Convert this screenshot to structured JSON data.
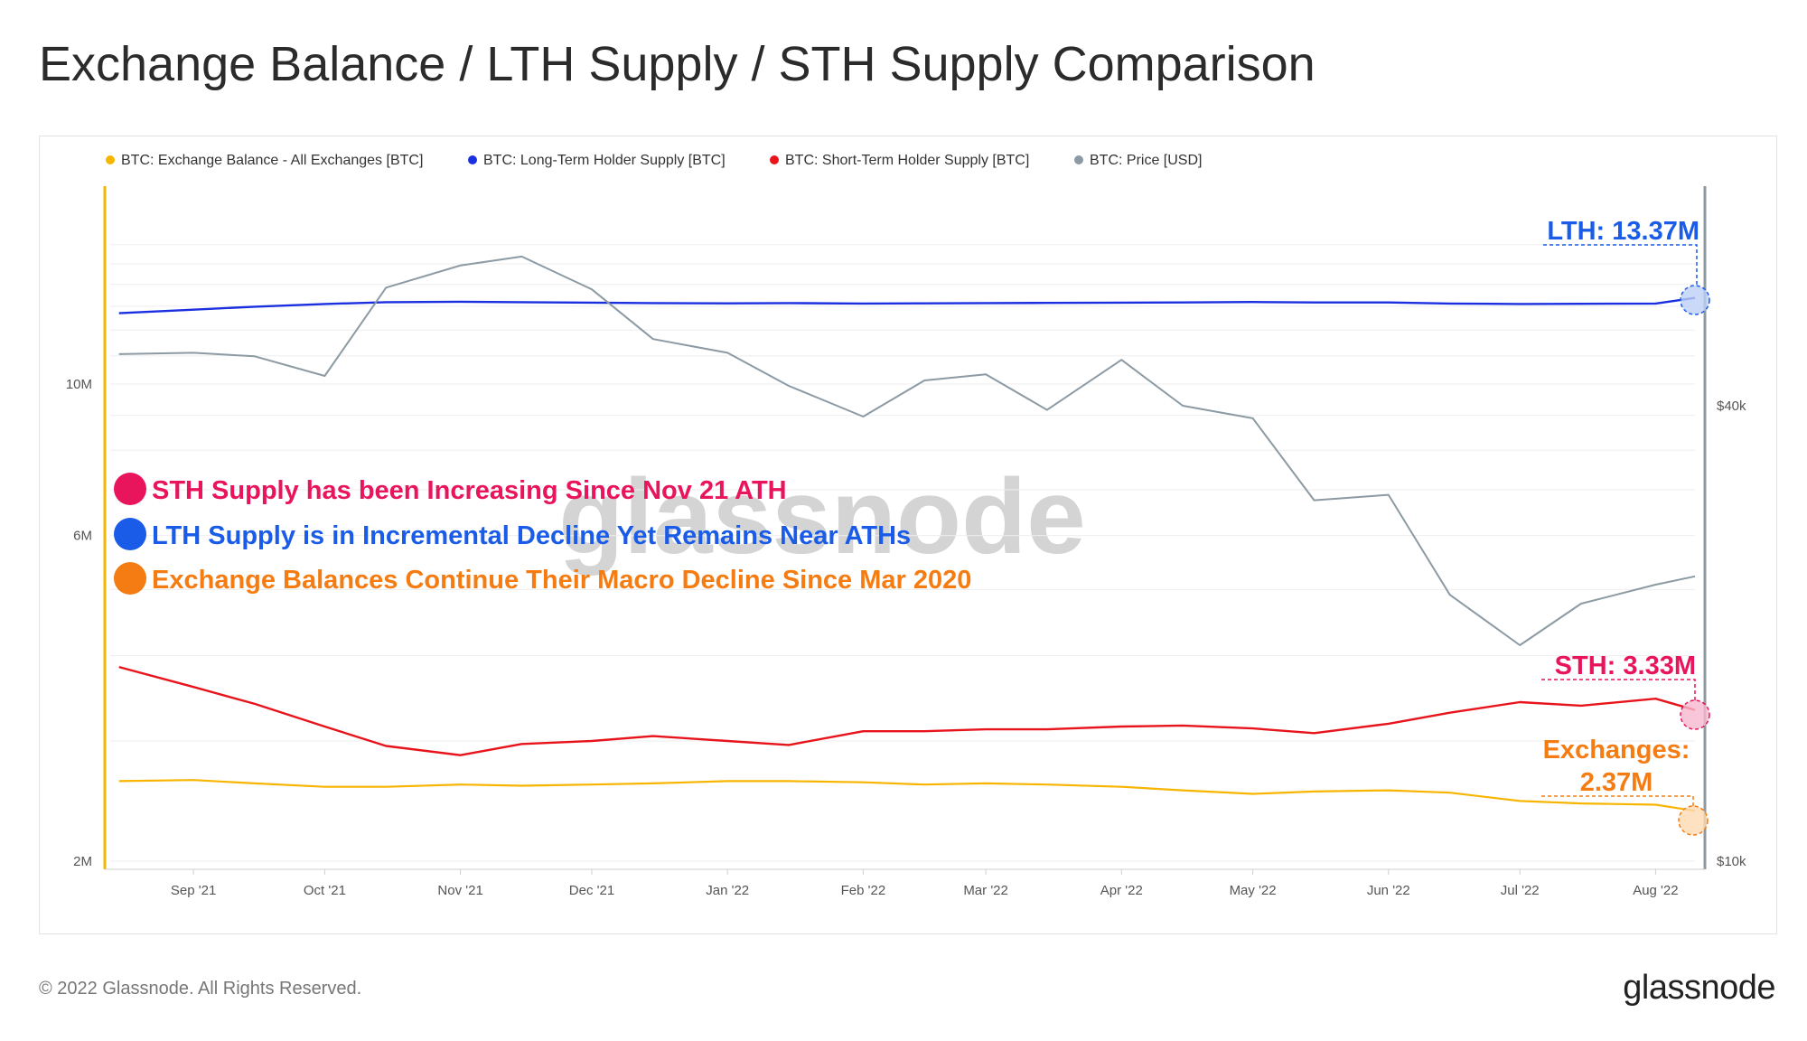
{
  "title": "Exchange Balance / LTH Supply / STH Supply Comparison",
  "footer": {
    "copyright": "© 2022 Glassnode. All Rights Reserved.",
    "logo": "glassnode"
  },
  "watermark": "glassnode",
  "colors": {
    "exchange": "#f7b500",
    "lth": "#1a2fe0",
    "sth": "#e8141c",
    "price": "#8c9aa3",
    "anno_sth": "#e8145c",
    "anno_lth": "#1a5ce8",
    "anno_exchange": "#f57c12"
  },
  "annotations": [
    {
      "text": "STH Supply has been Increasing Since Nov 21 ATH",
      "color": "#e8145c"
    },
    {
      "text": "LTH Supply is in Incremental Decline Yet Remains Near ATHs",
      "color": "#1a5ce8"
    },
    {
      "text": "Exchange Balances Continue Their Macro Decline Since Mar 2020",
      "color": "#f57c12"
    }
  ],
  "value_labels": {
    "lth": "LTH: 13.37M",
    "sth": "STH: 3.33M",
    "exchange_line1": "Exchanges:",
    "exchange_line2": "2.37M"
  },
  "chart_data": {
    "type": "line",
    "legend": [
      "BTC: Exchange Balance - All Exchanges [BTC]",
      "BTC: Long-Term Holder Supply [BTC]",
      "BTC: Short-Term Holder Supply [BTC]",
      "BTC: Price [USD]"
    ],
    "legend_position": "top-left",
    "x_ticks": [
      "Sep '21",
      "Oct '21",
      "Nov '21",
      "Dec '21",
      "Jan '22",
      "Feb '22",
      "Mar '22",
      "Apr '22",
      "May '22",
      "Jun '22",
      "Jul '22",
      "Aug '22"
    ],
    "y_left": {
      "scale": "log",
      "ticks": [
        "2M",
        "6M",
        "10M"
      ],
      "tick_values": [
        2000000,
        6000000,
        10000000
      ]
    },
    "y_right": {
      "scale": "log",
      "ticks": [
        "$10k",
        "$40k"
      ],
      "tick_values": [
        10000,
        40000
      ]
    },
    "x": [
      "2021-08-15",
      "2021-09-01",
      "2021-09-15",
      "2021-10-01",
      "2021-10-15",
      "2021-11-01",
      "2021-11-15",
      "2021-12-01",
      "2021-12-15",
      "2022-01-01",
      "2022-01-15",
      "2022-02-01",
      "2022-02-15",
      "2022-03-01",
      "2022-03-15",
      "2022-04-01",
      "2022-04-15",
      "2022-05-01",
      "2022-05-15",
      "2022-06-01",
      "2022-06-15",
      "2022-07-01",
      "2022-07-15",
      "2022-08-01",
      "2022-08-10"
    ],
    "series": [
      {
        "name": "BTC: Exchange Balance - All Exchanges [BTC]",
        "axis": "left",
        "values": [
          2.62,
          2.63,
          2.6,
          2.57,
          2.57,
          2.59,
          2.58,
          2.59,
          2.6,
          2.62,
          2.62,
          2.61,
          2.59,
          2.6,
          2.59,
          2.57,
          2.54,
          2.51,
          2.53,
          2.54,
          2.52,
          2.45,
          2.43,
          2.42,
          2.37
        ]
      },
      {
        "name": "BTC: Long-Term Holder Supply [BTC]",
        "axis": "left",
        "values": [
          12.7,
          12.85,
          12.98,
          13.1,
          13.18,
          13.2,
          13.18,
          13.16,
          13.14,
          13.13,
          13.14,
          13.12,
          13.13,
          13.14,
          13.15,
          13.16,
          13.17,
          13.19,
          13.17,
          13.17,
          13.12,
          13.1,
          13.11,
          13.12,
          13.37
        ]
      },
      {
        "name": "BTC: Short-Term Holder Supply [BTC]",
        "axis": "left",
        "values": [
          3.85,
          3.6,
          3.4,
          3.15,
          2.95,
          2.86,
          2.97,
          3.0,
          3.05,
          3.0,
          2.96,
          3.1,
          3.1,
          3.12,
          3.12,
          3.15,
          3.16,
          3.13,
          3.08,
          3.18,
          3.3,
          3.42,
          3.38,
          3.46,
          3.33
        ]
      },
      {
        "name": "BTC: Price [USD]",
        "axis": "right",
        "values": [
          46800,
          47000,
          46500,
          43800,
          57300,
          61300,
          63000,
          57000,
          49000,
          47000,
          42500,
          38700,
          43200,
          44000,
          39500,
          46000,
          40000,
          38500,
          30000,
          30500,
          22500,
          19300,
          21900,
          23200,
          23800
        ]
      }
    ]
  }
}
